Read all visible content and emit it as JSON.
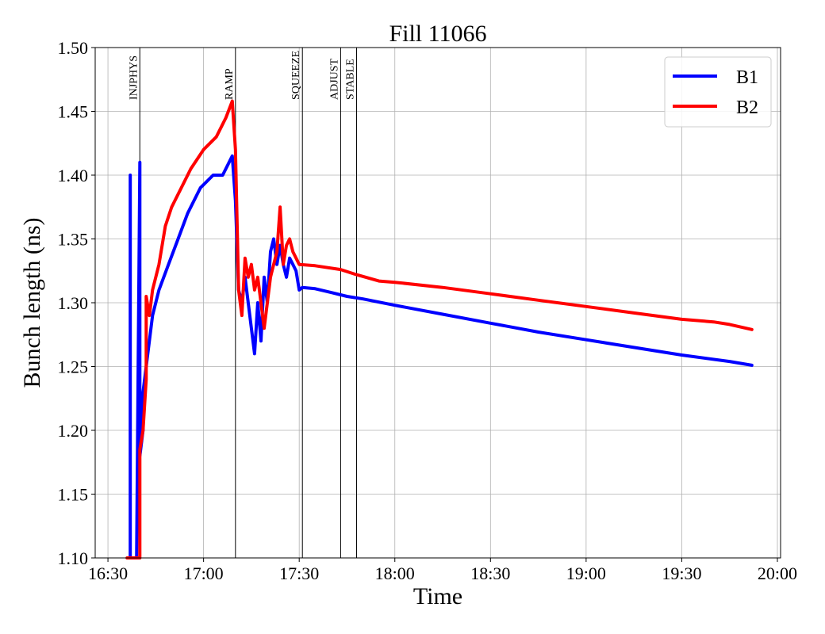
{
  "chart_data": {
    "type": "line",
    "title": "Fill 11066",
    "xlabel": "Time",
    "ylabel": "Bunch length (ns)",
    "xlim": [
      "16:26",
      "20:01"
    ],
    "ylim": [
      1.1,
      1.5
    ],
    "grid": true,
    "legend_position": "top-right",
    "x_ticks": [
      "16:30",
      "17:00",
      "17:30",
      "18:00",
      "18:30",
      "19:00",
      "19:30",
      "20:00"
    ],
    "y_ticks": [
      "1.10",
      "1.15",
      "1.20",
      "1.25",
      "1.30",
      "1.35",
      "1.40",
      "1.45",
      "1.50"
    ],
    "phases": [
      {
        "label": "INJPHYS",
        "time": "16:40"
      },
      {
        "label": "RAMP",
        "time": "17:10"
      },
      {
        "label": "SQUEEZE",
        "time": "17:31"
      },
      {
        "label": "ADJUST",
        "time": "17:43"
      },
      {
        "label": "STABLE",
        "time": "17:48"
      }
    ],
    "series": [
      {
        "name": "B1",
        "color": "#0000ff",
        "points": [
          [
            "16:37",
            1.1
          ],
          [
            "16:37",
            1.4
          ],
          [
            "16:37",
            1.1
          ],
          [
            "16:39",
            1.1
          ],
          [
            "16:40",
            1.41
          ],
          [
            "16:40",
            1.18
          ],
          [
            "16:41",
            1.2
          ],
          [
            "16:41",
            1.23
          ],
          [
            "16:42",
            1.25
          ],
          [
            "16:43",
            1.27
          ],
          [
            "16:44",
            1.29
          ],
          [
            "16:46",
            1.31
          ],
          [
            "16:49",
            1.33
          ],
          [
            "16:52",
            1.35
          ],
          [
            "16:55",
            1.37
          ],
          [
            "16:59",
            1.39
          ],
          [
            "17:03",
            1.4
          ],
          [
            "17:06",
            1.4
          ],
          [
            "17:09",
            1.415
          ],
          [
            "17:10",
            1.38
          ],
          [
            "17:11",
            1.31
          ],
          [
            "17:12",
            1.3
          ],
          [
            "17:13",
            1.32
          ],
          [
            "17:14",
            1.3
          ],
          [
            "17:15",
            1.28
          ],
          [
            "17:16",
            1.26
          ],
          [
            "17:17",
            1.3
          ],
          [
            "17:18",
            1.27
          ],
          [
            "17:19",
            1.32
          ],
          [
            "17:20",
            1.3
          ],
          [
            "17:21",
            1.34
          ],
          [
            "17:22",
            1.35
          ],
          [
            "17:23",
            1.33
          ],
          [
            "17:24",
            1.345
          ],
          [
            "17:25",
            1.33
          ],
          [
            "17:26",
            1.32
          ],
          [
            "17:27",
            1.335
          ],
          [
            "17:28",
            1.33
          ],
          [
            "17:29",
            1.325
          ],
          [
            "17:30",
            1.31
          ],
          [
            "17:31",
            1.312
          ],
          [
            "17:35",
            1.311
          ],
          [
            "17:40",
            1.308
          ],
          [
            "17:45",
            1.305
          ],
          [
            "17:50",
            1.303
          ],
          [
            "18:00",
            1.298
          ],
          [
            "18:15",
            1.291
          ],
          [
            "18:30",
            1.284
          ],
          [
            "18:45",
            1.277
          ],
          [
            "19:00",
            1.271
          ],
          [
            "19:15",
            1.265
          ],
          [
            "19:30",
            1.259
          ],
          [
            "19:45",
            1.254
          ],
          [
            "19:52",
            1.251
          ]
        ]
      },
      {
        "name": "B2",
        "color": "#ff0000",
        "points": [
          [
            "16:36",
            1.1
          ],
          [
            "16:37",
            1.1
          ],
          [
            "16:39",
            1.1
          ],
          [
            "16:40",
            1.1
          ],
          [
            "16:40",
            1.185
          ],
          [
            "16:41",
            1.2
          ],
          [
            "16:42",
            1.24
          ],
          [
            "16:42",
            1.305
          ],
          [
            "16:43",
            1.29
          ],
          [
            "16:44",
            1.31
          ],
          [
            "16:46",
            1.33
          ],
          [
            "16:48",
            1.36
          ],
          [
            "16:50",
            1.375
          ],
          [
            "16:53",
            1.39
          ],
          [
            "16:56",
            1.405
          ],
          [
            "17:00",
            1.42
          ],
          [
            "17:04",
            1.43
          ],
          [
            "17:07",
            1.445
          ],
          [
            "17:09",
            1.458
          ],
          [
            "17:10",
            1.42
          ],
          [
            "17:11",
            1.31
          ],
          [
            "17:12",
            1.29
          ],
          [
            "17:13",
            1.335
          ],
          [
            "17:14",
            1.32
          ],
          [
            "17:15",
            1.33
          ],
          [
            "17:16",
            1.31
          ],
          [
            "17:17",
            1.32
          ],
          [
            "17:18",
            1.3
          ],
          [
            "17:19",
            1.28
          ],
          [
            "17:20",
            1.3
          ],
          [
            "17:21",
            1.32
          ],
          [
            "17:22",
            1.33
          ],
          [
            "17:23",
            1.34
          ],
          [
            "17:24",
            1.375
          ],
          [
            "17:25",
            1.33
          ],
          [
            "17:26",
            1.345
          ],
          [
            "17:27",
            1.35
          ],
          [
            "17:28",
            1.34
          ],
          [
            "17:30",
            1.33
          ],
          [
            "17:35",
            1.329
          ],
          [
            "17:43",
            1.326
          ],
          [
            "17:48",
            1.322
          ],
          [
            "17:55",
            1.317
          ],
          [
            "18:00",
            1.316
          ],
          [
            "18:15",
            1.312
          ],
          [
            "18:30",
            1.307
          ],
          [
            "18:45",
            1.302
          ],
          [
            "19:00",
            1.297
          ],
          [
            "19:15",
            1.292
          ],
          [
            "19:30",
            1.287
          ],
          [
            "19:40",
            1.285
          ],
          [
            "19:45",
            1.283
          ],
          [
            "19:52",
            1.279
          ]
        ]
      }
    ]
  }
}
